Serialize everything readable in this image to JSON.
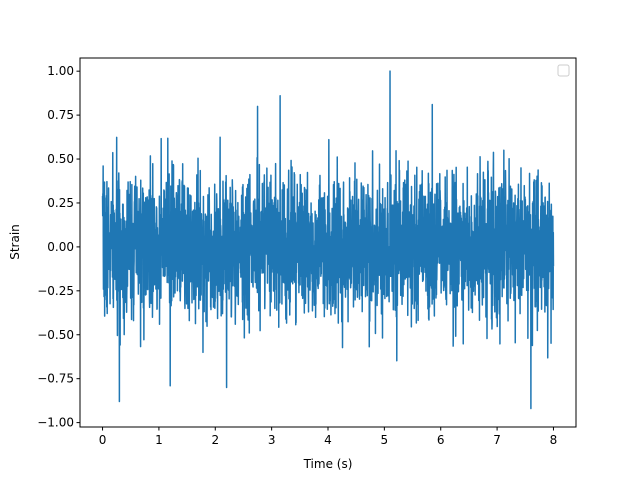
{
  "chart_data": {
    "type": "line",
    "title": "",
    "xlabel": "Time (s)",
    "ylabel": "Strain",
    "xlim": [
      -0.4,
      8.4
    ],
    "ylim": [
      -1.025,
      1.075
    ],
    "x_ticks": [
      0,
      1,
      2,
      3,
      4,
      5,
      6,
      7,
      8
    ],
    "x_tick_labels": [
      "0",
      "1",
      "2",
      "3",
      "4",
      "5",
      "6",
      "7",
      "8"
    ],
    "y_ticks": [
      -1.0,
      -0.75,
      -0.5,
      -0.25,
      0.0,
      0.25,
      0.5,
      0.75,
      1.0
    ],
    "y_tick_labels": [
      "−1.00",
      "−0.75",
      "−0.50",
      "−0.25",
      "0.00",
      "0.25",
      "0.50",
      "0.75",
      "1.00"
    ],
    "grid": false,
    "legend": {
      "placement": "top-right",
      "entries": []
    },
    "series": [
      {
        "color": "#1f77b4",
        "x_range": [
          0,
          8
        ],
        "noise_std": 0.2,
        "peaks": [
          {
            "x": 0.3,
            "y": -0.88
          },
          {
            "x": 1.2,
            "y": -0.79
          },
          {
            "x": 2.2,
            "y": -0.8
          },
          {
            "x": 2.75,
            "y": 0.8
          },
          {
            "x": 3.15,
            "y": 0.86
          },
          {
            "x": 5.1,
            "y": 1.0
          },
          {
            "x": 5.85,
            "y": 0.81
          },
          {
            "x": 7.6,
            "y": -0.92
          }
        ]
      }
    ]
  }
}
